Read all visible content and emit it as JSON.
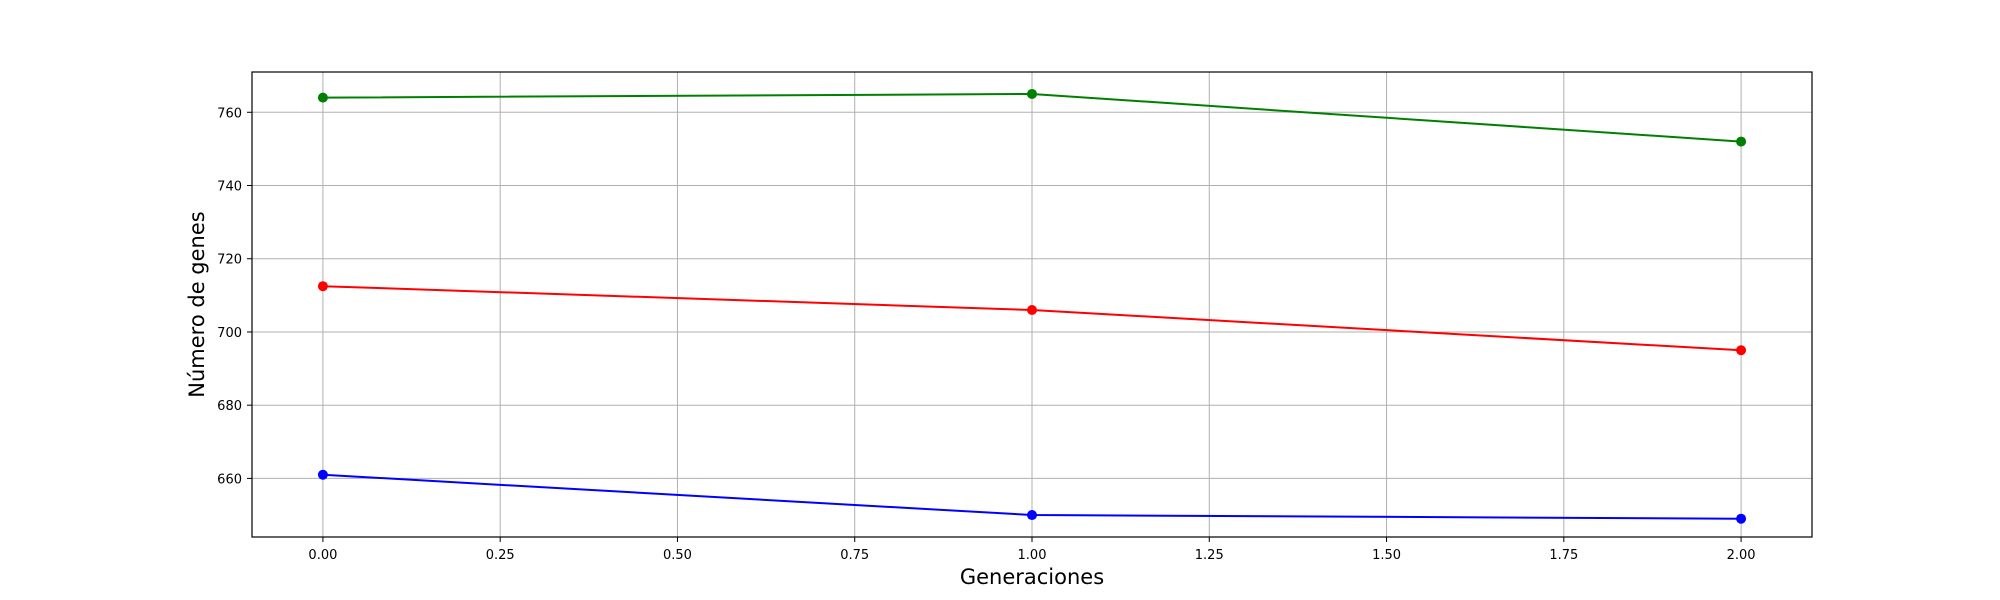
{
  "chart_data": {
    "type": "line",
    "title": "",
    "xlabel": "Generaciones",
    "ylabel": "Número de genes",
    "xlim": [
      -0.1,
      2.1
    ],
    "ylim": [
      644,
      771
    ],
    "grid": true,
    "xticks": [
      0.0,
      0.25,
      0.5,
      0.75,
      1.0,
      1.25,
      1.5,
      1.75,
      2.0
    ],
    "xtick_labels": [
      "0.00",
      "0.25",
      "0.50",
      "0.75",
      "1.00",
      "1.25",
      "1.50",
      "1.75",
      "2.00"
    ],
    "yticks": [
      660,
      680,
      700,
      720,
      740,
      760
    ],
    "ytick_labels": [
      "660",
      "680",
      "700",
      "720",
      "740",
      "760"
    ],
    "x": [
      0,
      1,
      2
    ],
    "series": [
      {
        "color": "#008000",
        "values": [
          764,
          765,
          752
        ]
      },
      {
        "color": "#ff0000",
        "values": [
          712.5,
          706,
          695
        ]
      },
      {
        "color": "#0000ff",
        "values": [
          661,
          650,
          649
        ]
      }
    ]
  }
}
